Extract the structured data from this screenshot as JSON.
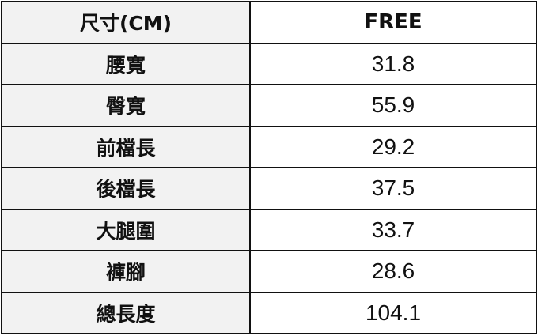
{
  "header": {
    "label": "尺寸(CM)",
    "size": "FREE"
  },
  "rows": [
    {
      "label": "腰寬",
      "value": "31.8"
    },
    {
      "label": "臀寬",
      "value": "55.9"
    },
    {
      "label": "前檔長",
      "value": "29.2"
    },
    {
      "label": "後檔長",
      "value": "37.5"
    },
    {
      "label": "大腿圍",
      "value": "33.7"
    },
    {
      "label": "褲腳",
      "value": "28.6"
    },
    {
      "label": "總長度",
      "value": "104.1"
    }
  ]
}
